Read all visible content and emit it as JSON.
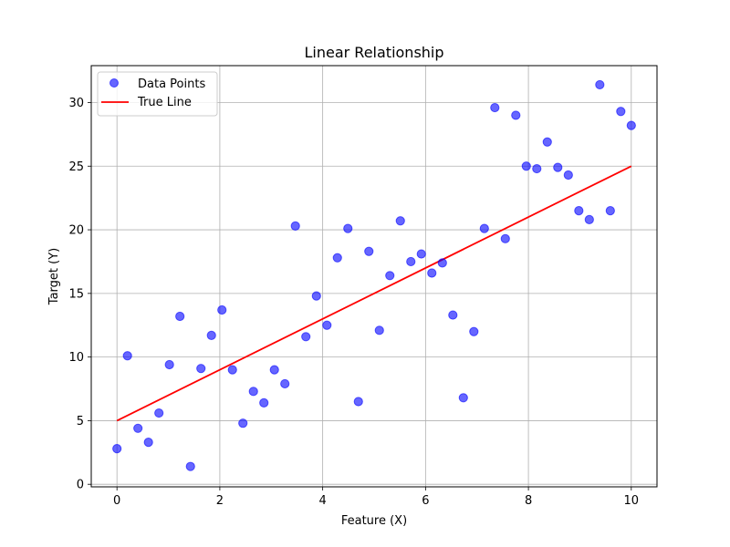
{
  "chart_data": {
    "type": "scatter",
    "title": "Linear Relationship",
    "xlabel": "Feature (X)",
    "ylabel": "Target (Y)",
    "xlim": [
      -0.5,
      10.5
    ],
    "ylim": [
      -0.2,
      32.9
    ],
    "xticks": [
      0,
      2,
      4,
      6,
      8,
      10
    ],
    "yticks": [
      0,
      5,
      10,
      15,
      20,
      25,
      30
    ],
    "grid": true,
    "legend_position": "top-left",
    "series": [
      {
        "name": "Data Points",
        "kind": "scatter",
        "color": "#0000ff",
        "x": [
          0.0,
          0.204,
          0.408,
          0.612,
          0.816,
          1.02,
          1.224,
          1.429,
          1.633,
          1.837,
          2.041,
          2.245,
          2.449,
          2.653,
          2.857,
          3.061,
          3.265,
          3.469,
          3.673,
          3.878,
          4.082,
          4.286,
          4.49,
          4.694,
          4.898,
          5.102,
          5.306,
          5.51,
          5.714,
          5.918,
          6.122,
          6.327,
          6.531,
          6.735,
          6.939,
          7.143,
          7.347,
          7.551,
          7.755,
          7.959,
          8.163,
          8.367,
          8.571,
          8.776,
          8.98,
          9.184,
          9.388,
          9.592,
          9.796,
          10.0
        ],
        "y": [
          2.8,
          10.1,
          4.4,
          3.3,
          5.6,
          9.4,
          13.2,
          1.4,
          9.1,
          11.7,
          13.7,
          9.0,
          4.8,
          7.3,
          6.4,
          9.0,
          7.9,
          20.3,
          11.6,
          14.8,
          12.5,
          17.8,
          20.1,
          6.5,
          18.3,
          12.1,
          16.4,
          20.7,
          17.5,
          18.1,
          16.6,
          17.4,
          13.3,
          6.8,
          12.0,
          20.1,
          29.6,
          19.3,
          29.0,
          25.0,
          24.8,
          26.9,
          24.9,
          24.3,
          21.5,
          20.8,
          31.4,
          21.5,
          29.3,
          28.2
        ]
      },
      {
        "name": "True Line",
        "kind": "line",
        "color": "#ff0000",
        "x": [
          0,
          10
        ],
        "y": [
          5,
          25
        ]
      }
    ]
  }
}
